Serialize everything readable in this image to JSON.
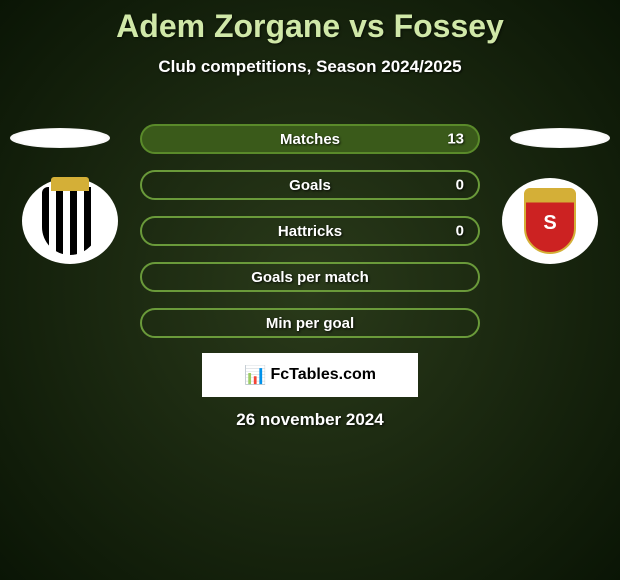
{
  "title": "Adem Zorgane vs Fossey",
  "subtitle": "Club competitions, Season 2024/2025",
  "stats": [
    {
      "label": "Matches",
      "value": "13",
      "border": "#5a8a2a",
      "bg": "#3a5a1a"
    },
    {
      "label": "Goals",
      "value": "0",
      "border": "#6a9a3a",
      "bg": "transparent"
    },
    {
      "label": "Hattricks",
      "value": "0",
      "border": "#6a9a3a",
      "bg": "transparent"
    },
    {
      "label": "Goals per match",
      "value": "",
      "border": "#6a9a3a",
      "bg": "transparent"
    },
    {
      "label": "Min per goal",
      "value": "",
      "border": "#6a9a3a",
      "bg": "transparent"
    }
  ],
  "logo_text": "FcTables.com",
  "date": "26 november 2024",
  "colors": {
    "title": "#d0e8a8",
    "text": "#ffffff"
  }
}
